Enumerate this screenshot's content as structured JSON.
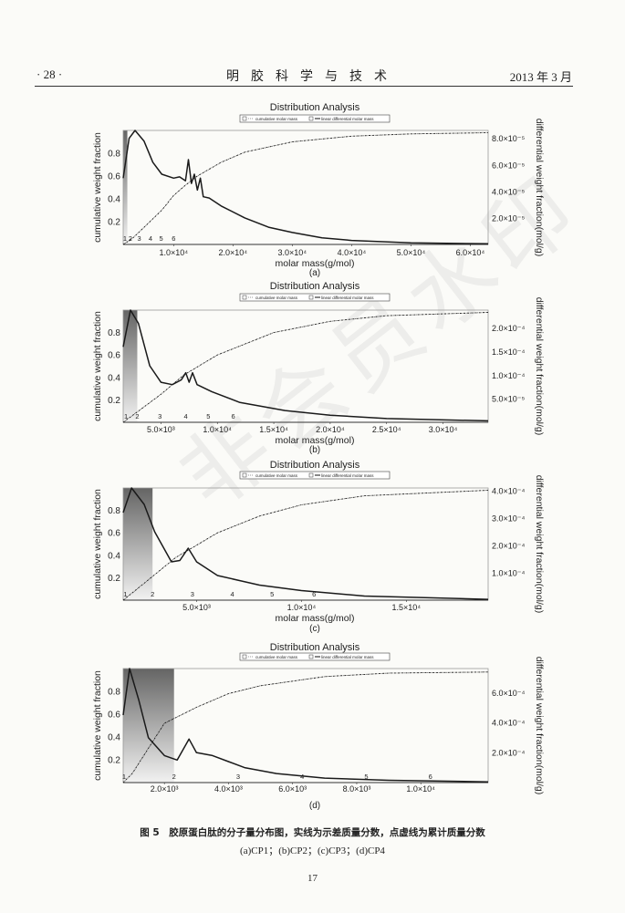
{
  "header": {
    "page_label": "· 28 ·",
    "journal": "明胶科学与技术",
    "date": "2013 年 3 月"
  },
  "watermark": "非会员水印",
  "caption": "图 5　胶原蛋白肽的分子量分布图，实线为示差质量分数，点虚线为累计质量分数",
  "subcaption": "(a)CP1；(b)CP2；(c)CP3；(d)CP4",
  "page_number": "17",
  "colors": {
    "curve": "#1a1a1a",
    "shade_dark": "#4a4a4a",
    "shade_light": "#f0f0f0",
    "axis": "#555555"
  },
  "chart_data": [
    {
      "type": "line",
      "panel": "(a)",
      "title": "Distribution Analysis",
      "legend": [
        "cumulative molar mass",
        "linear differential molar mass"
      ],
      "legend_placement": "top-center",
      "xlabel": "molar mass(g/mol)",
      "ylabel_left": "cumulative weight fraction",
      "ylabel_right": "differential weight fraction(mol/g)",
      "xlim": [
        1500,
        63000
      ],
      "ylim_left": [
        0,
        1
      ],
      "ylim_right": [
        0,
        8.6e-05
      ],
      "xticks": [
        {
          "v": 10000,
          "label": "1.0×10⁴"
        },
        {
          "v": 20000,
          "label": "2.0×10⁴"
        },
        {
          "v": 30000,
          "label": "3.0×10⁴"
        },
        {
          "v": 40000,
          "label": "4.0×10⁴"
        },
        {
          "v": 50000,
          "label": "5.0×10⁴"
        },
        {
          "v": 60000,
          "label": "6.0×10⁴"
        }
      ],
      "yticks_left": [
        {
          "v": 0.2,
          "label": "0.2"
        },
        {
          "v": 0.4,
          "label": "0.4"
        },
        {
          "v": 0.6,
          "label": "0.6"
        },
        {
          "v": 0.8,
          "label": "0.8"
        }
      ],
      "yticks_right": [
        {
          "v": 2e-05,
          "label": "2.0×10⁻⁵"
        },
        {
          "v": 4e-05,
          "label": "4.0×10⁻⁵"
        },
        {
          "v": 6e-05,
          "label": "6.0×10⁻⁵"
        },
        {
          "v": 8e-05,
          "label": "8.0×10⁻⁵"
        }
      ],
      "shaded_to": 2200,
      "region_labels": [
        {
          "x": 1800,
          "label": "1"
        },
        {
          "x": 2700,
          "label": "2"
        },
        {
          "x": 4200,
          "label": "3"
        },
        {
          "x": 6100,
          "label": "4"
        },
        {
          "x": 7900,
          "label": "5"
        },
        {
          "x": 10000,
          "label": "6"
        }
      ],
      "series": [
        {
          "name": "linear differential molar mass",
          "axis": "right",
          "style": "solid",
          "points": [
            [
              1500,
              5e-05
            ],
            [
              2500,
              8e-05
            ],
            [
              3500,
              8.6e-05
            ],
            [
              5000,
              7.8e-05
            ],
            [
              6500,
              6.2e-05
            ],
            [
              8000,
              5.3e-05
            ],
            [
              10000,
              5e-05
            ],
            [
              11000,
              5.1e-05
            ],
            [
              12000,
              4.8e-05
            ],
            [
              12500,
              6.4e-05
            ],
            [
              13000,
              4.6e-05
            ],
            [
              13500,
              5.3e-05
            ],
            [
              14000,
              4.1e-05
            ],
            [
              14500,
              5e-05
            ],
            [
              15000,
              3.6e-05
            ],
            [
              16000,
              3.5e-05
            ],
            [
              18000,
              2.9e-05
            ],
            [
              22000,
              2e-05
            ],
            [
              26000,
              1.3e-05
            ],
            [
              30000,
              9e-06
            ],
            [
              35000,
              5e-06
            ],
            [
              40000,
              3e-06
            ],
            [
              50000,
              1.2e-06
            ],
            [
              63000,
              5e-07
            ]
          ]
        },
        {
          "name": "cumulative molar mass",
          "axis": "left",
          "style": "dotted",
          "points": [
            [
              1500,
              0
            ],
            [
              3000,
              0.05
            ],
            [
              5000,
              0.15
            ],
            [
              8000,
              0.3
            ],
            [
              10000,
              0.43
            ],
            [
              12000,
              0.52
            ],
            [
              14000,
              0.6
            ],
            [
              18000,
              0.72
            ],
            [
              22000,
              0.81
            ],
            [
              30000,
              0.9
            ],
            [
              40000,
              0.95
            ],
            [
              50000,
              0.97
            ],
            [
              63000,
              0.98
            ]
          ]
        }
      ]
    },
    {
      "type": "line",
      "panel": "(b)",
      "title": "Distribution Analysis",
      "legend": [
        "cumulative molar mass",
        "linear differential molar mass"
      ],
      "legend_placement": "top-center",
      "xlabel": "molar mass(g/mol)",
      "ylabel_left": "cumulative weight fraction",
      "ylabel_right": "differential weight fraction(mol/g)",
      "xlim": [
        1650,
        34000
      ],
      "ylim_left": [
        0,
        1
      ],
      "ylim_right": [
        0,
        0.000238
      ],
      "xticks": [
        {
          "v": 5000,
          "label": "5.0×10³"
        },
        {
          "v": 10000,
          "label": "1.0×10⁴"
        },
        {
          "v": 15000,
          "label": "1.5×10⁴"
        },
        {
          "v": 20000,
          "label": "2.0×10⁴"
        },
        {
          "v": 25000,
          "label": "2.5×10⁴"
        },
        {
          "v": 30000,
          "label": "3.0×10⁴"
        }
      ],
      "yticks_left": [
        {
          "v": 0.2,
          "label": "0.2"
        },
        {
          "v": 0.4,
          "label": "0.4"
        },
        {
          "v": 0.6,
          "label": "0.6"
        },
        {
          "v": 0.8,
          "label": "0.8"
        }
      ],
      "yticks_right": [
        {
          "v": 5e-05,
          "label": "5.0×10⁻⁵"
        },
        {
          "v": 0.0001,
          "label": "1.0×10⁻⁴"
        },
        {
          "v": 0.00015,
          "label": "1.5×10⁻⁴"
        },
        {
          "v": 0.0002,
          "label": "2.0×10⁻⁴"
        }
      ],
      "shaded_to": 2900,
      "region_labels": [
        {
          "x": 1900,
          "label": "1"
        },
        {
          "x": 2900,
          "label": "2"
        },
        {
          "x": 4900,
          "label": "3"
        },
        {
          "x": 7200,
          "label": "4"
        },
        {
          "x": 9200,
          "label": "5"
        },
        {
          "x": 11400,
          "label": "6"
        }
      ],
      "series": [
        {
          "name": "linear differential molar mass",
          "axis": "right",
          "style": "solid",
          "points": [
            [
              1650,
              0.00016
            ],
            [
              2300,
              0.000238
            ],
            [
              3000,
              0.00021
            ],
            [
              4000,
              0.00012
            ],
            [
              5000,
              8.5e-05
            ],
            [
              6000,
              8e-05
            ],
            [
              6800,
              9e-05
            ],
            [
              7200,
              0.000105
            ],
            [
              7500,
              8.5e-05
            ],
            [
              7800,
              0.000105
            ],
            [
              8200,
              8e-05
            ],
            [
              9500,
              6.5e-05
            ],
            [
              12000,
              4.2e-05
            ],
            [
              16000,
              2.5e-05
            ],
            [
              20000,
              1.5e-05
            ],
            [
              25000,
              8e-06
            ],
            [
              34000,
              3e-06
            ]
          ]
        },
        {
          "name": "cumulative molar mass",
          "axis": "left",
          "style": "dotted",
          "points": [
            [
              1650,
              0
            ],
            [
              3000,
              0.1
            ],
            [
              5000,
              0.25
            ],
            [
              7000,
              0.42
            ],
            [
              10000,
              0.6
            ],
            [
              15000,
              0.8
            ],
            [
              20000,
              0.9
            ],
            [
              25000,
              0.95
            ],
            [
              34000,
              0.98
            ]
          ]
        }
      ]
    },
    {
      "type": "line",
      "panel": "(c)",
      "title": "Distribution Analysis",
      "legend": [
        "cumulative molar mass",
        "linear differential molar mass"
      ],
      "legend_placement": "top-center",
      "xlabel": "molar mass(g/mol)",
      "ylabel_left": "cumulative weight fraction",
      "ylabel_right": "differential weight fraction(mol/g)",
      "xlim": [
        1500,
        18900
      ],
      "ylim_left": [
        0,
        1
      ],
      "ylim_right": [
        0,
        0.00041
      ],
      "xticks": [
        {
          "v": 5000,
          "label": "5.0×10³"
        },
        {
          "v": 10000,
          "label": "1.0×10⁴"
        },
        {
          "v": 15000,
          "label": "1.5×10⁴"
        }
      ],
      "yticks_left": [
        {
          "v": 0.2,
          "label": "0.2"
        },
        {
          "v": 0.4,
          "label": "0.4"
        },
        {
          "v": 0.6,
          "label": "0.6"
        },
        {
          "v": 0.8,
          "label": "0.8"
        }
      ],
      "yticks_right": [
        {
          "v": 0.0001,
          "label": "1.0×10⁻⁴"
        },
        {
          "v": 0.0002,
          "label": "2.0×10⁻⁴"
        },
        {
          "v": 0.0003,
          "label": "3.0×10⁻⁴"
        },
        {
          "v": 0.0004,
          "label": "4.0×10⁻⁴"
        }
      ],
      "shaded_to": 2900,
      "region_labels": [
        {
          "x": 1600,
          "label": "1"
        },
        {
          "x": 2900,
          "label": "2"
        },
        {
          "x": 4800,
          "label": "3"
        },
        {
          "x": 6700,
          "label": "4"
        },
        {
          "x": 8600,
          "label": "5"
        },
        {
          "x": 10600,
          "label": "6"
        }
      ],
      "series": [
        {
          "name": "linear differential molar mass",
          "axis": "right",
          "style": "solid",
          "points": [
            [
              1500,
              0.00032
            ],
            [
              1900,
              0.00041
            ],
            [
              2500,
              0.00035
            ],
            [
              3000,
              0.00025
            ],
            [
              3800,
              0.00014
            ],
            [
              4200,
              0.000145
            ],
            [
              4600,
              0.00019
            ],
            [
              5000,
              0.00014
            ],
            [
              6000,
              9e-05
            ],
            [
              8000,
              5.5e-05
            ],
            [
              10000,
              3.5e-05
            ],
            [
              13000,
              1.5e-05
            ],
            [
              18900,
              3e-06
            ]
          ]
        },
        {
          "name": "cumulative molar mass",
          "axis": "left",
          "style": "dotted",
          "points": [
            [
              1500,
              0
            ],
            [
              2500,
              0.15
            ],
            [
              4000,
              0.38
            ],
            [
              6000,
              0.6
            ],
            [
              8000,
              0.75
            ],
            [
              10000,
              0.85
            ],
            [
              13000,
              0.93
            ],
            [
              18900,
              0.98
            ]
          ]
        }
      ]
    },
    {
      "type": "line",
      "panel": "(d)",
      "title": "Distribution Analysis",
      "legend": [
        "cumulative molar mass",
        "linear differential molar mass"
      ],
      "legend_placement": "top-center",
      "xlabel": "",
      "ylabel_left": "cumulative weight fraction",
      "ylabel_right": "differential weight fraction(mol/g)",
      "xlim": [
        714,
        12100
      ],
      "ylim_left": [
        0,
        1
      ],
      "ylim_right": [
        0,
        0.00076
      ],
      "xticks": [
        {
          "v": 2000,
          "label": "2.0×10³"
        },
        {
          "v": 4000,
          "label": "4.0×10³"
        },
        {
          "v": 6000,
          "label": "6.0×10³"
        },
        {
          "v": 8000,
          "label": "8.0×10³"
        },
        {
          "v": 10000,
          "label": "1.0×10⁴"
        }
      ],
      "yticks_left": [
        {
          "v": 0.2,
          "label": "0.2"
        },
        {
          "v": 0.4,
          "label": "0.4"
        },
        {
          "v": 0.6,
          "label": "0.6"
        },
        {
          "v": 0.8,
          "label": "0.8"
        }
      ],
      "yticks_right": [
        {
          "v": 0.0002,
          "label": "2.0×10⁻⁴"
        },
        {
          "v": 0.0004,
          "label": "4.0×10⁻⁴"
        },
        {
          "v": 0.0006,
          "label": "6.0×10⁻⁴"
        }
      ],
      "shaded_to": 2300,
      "region_labels": [
        {
          "x": 740,
          "label": "1"
        },
        {
          "x": 2300,
          "label": "2"
        },
        {
          "x": 4300,
          "label": "3"
        },
        {
          "x": 6300,
          "label": "4"
        },
        {
          "x": 8300,
          "label": "5"
        },
        {
          "x": 10300,
          "label": "6"
        }
      ],
      "series": [
        {
          "name": "linear differential molar mass",
          "axis": "right",
          "style": "solid",
          "points": [
            [
              714,
              0.00045
            ],
            [
              914,
              0.00076
            ],
            [
              1200,
              0.00055
            ],
            [
              1500,
              0.0003
            ],
            [
              2000,
              0.00018
            ],
            [
              2400,
              0.00015
            ],
            [
              2770,
              0.00029
            ],
            [
              3000,
              0.0002
            ],
            [
              3500,
              0.00018
            ],
            [
              4000,
              0.00014
            ],
            [
              4500,
              0.0001
            ],
            [
              5500,
              6e-05
            ],
            [
              7000,
              3e-05
            ],
            [
              9000,
              1.5e-05
            ],
            [
              12100,
              5e-06
            ]
          ]
        },
        {
          "name": "cumulative molar mass",
          "axis": "left",
          "style": "dotted",
          "points": [
            [
              714,
              0
            ],
            [
              1000,
              0.08
            ],
            [
              1500,
              0.3
            ],
            [
              2000,
              0.52
            ],
            [
              3000,
              0.66
            ],
            [
              4000,
              0.78
            ],
            [
              5000,
              0.85
            ],
            [
              7000,
              0.93
            ],
            [
              9000,
              0.96
            ],
            [
              12100,
              0.97
            ]
          ]
        }
      ]
    }
  ]
}
